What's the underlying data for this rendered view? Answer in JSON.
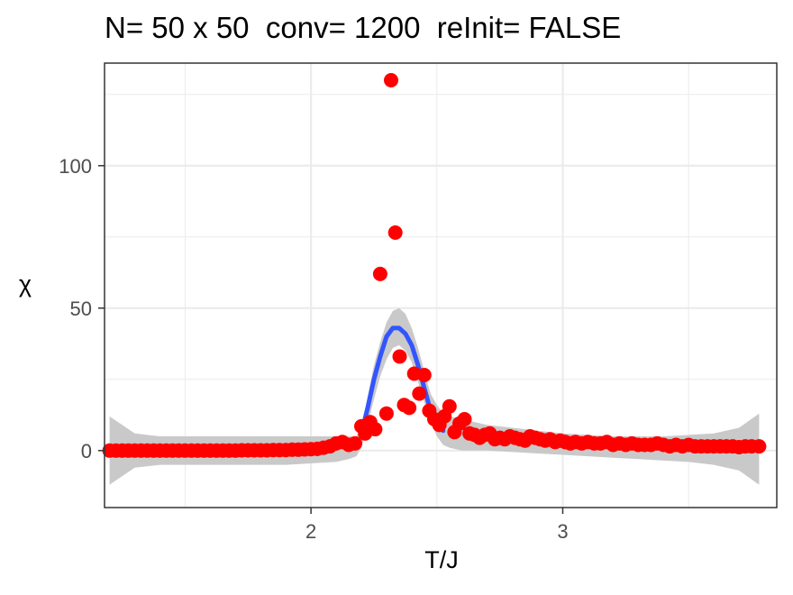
{
  "chart_data": {
    "type": "scatter",
    "title": "N= 50 x 50  conv= 1200  reInit= FALSE",
    "xlabel": "T/J",
    "ylabel": "χ",
    "xlim": [
      1.18,
      3.85
    ],
    "ylim": [
      -20,
      136
    ],
    "x_ticks": [
      2,
      3
    ],
    "x_tick_labels": [
      "2",
      "3"
    ],
    "y_ticks": [
      0,
      50,
      100
    ],
    "y_tick_labels": [
      "0",
      "50",
      "100"
    ],
    "x_minor_ticks": [
      1.5,
      2.5,
      3.5
    ],
    "y_minor_ticks": [
      25,
      75,
      125
    ],
    "grid": true,
    "colors": {
      "points": "#ff0000",
      "smooth_line": "#3355ff",
      "ribbon": "#c9c9c9",
      "grid": "#ebebeb",
      "panel_border": "#333333"
    },
    "series": [
      {
        "type": "points",
        "x": [
          1.2,
          1.225,
          1.25,
          1.275,
          1.3,
          1.325,
          1.35,
          1.375,
          1.4,
          1.425,
          1.45,
          1.475,
          1.5,
          1.525,
          1.55,
          1.575,
          1.6,
          1.625,
          1.65,
          1.675,
          1.7,
          1.725,
          1.75,
          1.775,
          1.8,
          1.825,
          1.85,
          1.875,
          1.9,
          1.925,
          1.95,
          1.975,
          2.0,
          2.025,
          2.05,
          2.075,
          2.1,
          2.125,
          2.15,
          2.175,
          2.2,
          2.215,
          2.235,
          2.255,
          2.275,
          2.3,
          2.318,
          2.335,
          2.352,
          2.37,
          2.39,
          2.41,
          2.43,
          2.45,
          2.47,
          2.49,
          2.51,
          2.53,
          2.55,
          2.57,
          2.59,
          2.61,
          2.63,
          2.65,
          2.67,
          2.69,
          2.71,
          2.73,
          2.75,
          2.77,
          2.79,
          2.81,
          2.83,
          2.85,
          2.87,
          2.89,
          2.91,
          2.93,
          2.95,
          2.97,
          2.99,
          3.01,
          3.03,
          3.05,
          3.075,
          3.1,
          3.125,
          3.15,
          3.175,
          3.2,
          3.225,
          3.25,
          3.275,
          3.3,
          3.325,
          3.35,
          3.375,
          3.4,
          3.425,
          3.45,
          3.475,
          3.5,
          3.525,
          3.55,
          3.575,
          3.6,
          3.625,
          3.65,
          3.675,
          3.7,
          3.725,
          3.75,
          3.78
        ],
        "y": [
          0,
          0,
          0,
          0,
          0,
          0,
          0,
          0,
          0,
          0,
          0,
          0,
          0,
          0,
          0,
          0,
          0,
          0,
          0,
          0,
          0,
          0.1,
          0.1,
          0.1,
          0.1,
          0.1,
          0.2,
          0.2,
          0.2,
          0.3,
          0.3,
          0.4,
          0.5,
          0.6,
          1,
          1.5,
          2.5,
          3,
          2,
          2.5,
          8.5,
          6,
          10,
          7.5,
          62,
          13,
          130,
          76.5,
          33,
          16,
          15,
          27,
          20,
          26.5,
          14,
          11,
          9,
          12,
          15.5,
          6.5,
          9.5,
          11,
          6,
          5.5,
          4.5,
          5.5,
          6,
          4,
          4.5,
          4,
          5,
          4.5,
          4,
          3.5,
          5,
          4.5,
          4,
          3.5,
          4,
          3,
          3.5,
          3,
          2.5,
          3,
          2.5,
          3,
          2.5,
          2.5,
          3,
          2,
          2.5,
          2,
          2.5,
          2,
          2,
          2,
          2.5,
          2,
          1.5,
          2,
          1.5,
          2,
          1.5,
          1.5,
          1.5,
          1.5,
          1.5,
          1.5,
          1.5,
          1.2,
          1.5,
          1.5,
          1.5
        ]
      },
      {
        "type": "smooth",
        "x": [
          2.2,
          2.225,
          2.25,
          2.275,
          2.3,
          2.325,
          2.35,
          2.375,
          2.4,
          2.425,
          2.45,
          2.475,
          2.5,
          2.525
        ],
        "y": [
          6,
          15,
          25,
          33,
          40,
          43,
          43,
          41,
          37,
          30,
          22,
          14,
          9,
          7
        ]
      },
      {
        "type": "ribbon",
        "x": [
          1.2,
          1.3,
          1.4,
          1.5,
          1.6,
          1.7,
          1.8,
          1.9,
          2.0,
          2.1,
          2.15,
          2.18,
          2.2,
          2.225,
          2.25,
          2.275,
          2.3,
          2.325,
          2.35,
          2.375,
          2.4,
          2.425,
          2.45,
          2.475,
          2.5,
          2.525,
          2.55,
          2.6,
          2.7,
          2.8,
          2.9,
          3.0,
          3.1,
          3.2,
          3.3,
          3.4,
          3.5,
          3.6,
          3.7,
          3.78
        ],
        "ymin": [
          -12,
          -6,
          -5,
          -5,
          -5,
          -5,
          -5,
          -5,
          -4.5,
          -4,
          -3,
          -2,
          1,
          9,
          18,
          26,
          32,
          36,
          37,
          35,
          31,
          24,
          17,
          10,
          5,
          2,
          1,
          0,
          0,
          -0.5,
          -1,
          -1.5,
          -2,
          -2.5,
          -3,
          -3.5,
          -4,
          -5,
          -7,
          -12
        ],
        "ymax": [
          12,
          6,
          5,
          5,
          5,
          5,
          5,
          5,
          5,
          5,
          5,
          5,
          8,
          19,
          30,
          38,
          45,
          49,
          50,
          48,
          43,
          36,
          28,
          20,
          16,
          13,
          12,
          11,
          9,
          8,
          7,
          6,
          5.5,
          5,
          5,
          5,
          5.5,
          6,
          8,
          13
        ]
      }
    ]
  }
}
